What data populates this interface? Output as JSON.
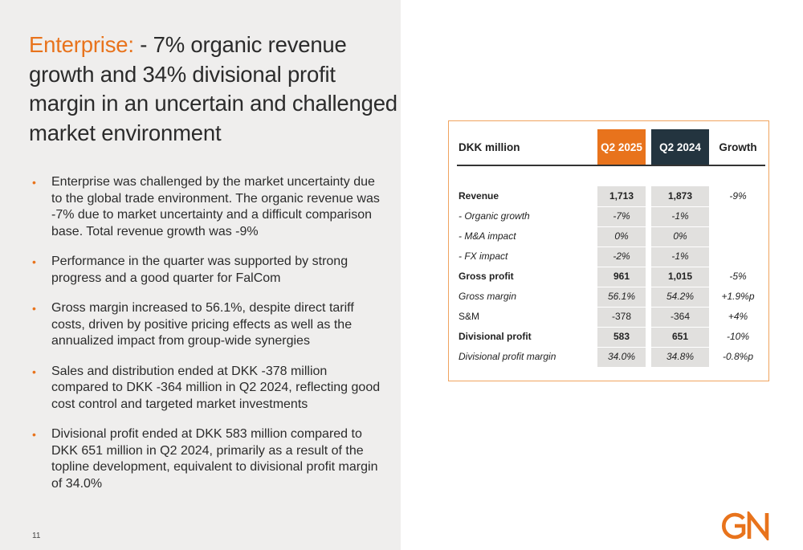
{
  "title": {
    "accent": "Enterprise:",
    "rest": " - 7% organic revenue growth and 34% divisional profit margin in an uncertain and challenged market environment"
  },
  "bullets": [
    "Enterprise was challenged by the market uncertainty due to the global trade environment. The organic revenue was -7% due to market uncertainty and a difficult comparison base. Total revenue growth was -9%",
    "Performance in the quarter was supported by strong progress and a good quarter for FalCom",
    "Gross margin increased to 56.1%, despite direct tariff costs, driven by positive pricing effects as well as the annualized impact from group-wide synergies",
    "Sales and distribution ended at DKK -378 million compared to DKK -364 million in Q2 2024, reflecting good cost control and targeted market investments",
    "Divisional profit ended at DKK 583 million compared to DKK 651 million in Q2 2024, primarily as a result of the topline development, equivalent to divisional profit margin of 34.0%"
  ],
  "bullet_marker": "•",
  "page_number": "11",
  "table": {
    "header": {
      "label": "DKK million",
      "col_a": "Q2 2025",
      "col_b": "Q2 2024",
      "col_growth": "Growth"
    },
    "rows": [
      {
        "label": "Revenue",
        "a": "1,713",
        "b": "1,873",
        "growth": "-9%"
      },
      {
        "label": "- Organic growth",
        "a": "-7%",
        "b": "-1%",
        "growth": ""
      },
      {
        "label": "- M&A impact",
        "a": "0%",
        "b": "0%",
        "growth": ""
      },
      {
        "label": "- FX impact",
        "a": "-2%",
        "b": "-1%",
        "growth": ""
      },
      {
        "label": "Gross profit",
        "a": "961",
        "b": "1,015",
        "growth": "-5%"
      },
      {
        "label": "Gross margin",
        "a": "56.1%",
        "b": "54.2%",
        "growth": "+1.9%p"
      },
      {
        "label": "S&M",
        "a": "-378",
        "b": "-364",
        "growth": "+4%"
      },
      {
        "label": "Divisional profit",
        "a": "583",
        "b": "651",
        "growth": "-10%"
      },
      {
        "label": "Divisional profit margin",
        "a": "34.0%",
        "b": "34.8%",
        "growth": "-0.8%p"
      }
    ]
  },
  "logo": {
    "text": "GN",
    "color": "#e8731c"
  },
  "colors": {
    "accent": "#e8731c",
    "navy": "#23343f",
    "panel": "#efeeed",
    "cell": "#e1e0de"
  }
}
